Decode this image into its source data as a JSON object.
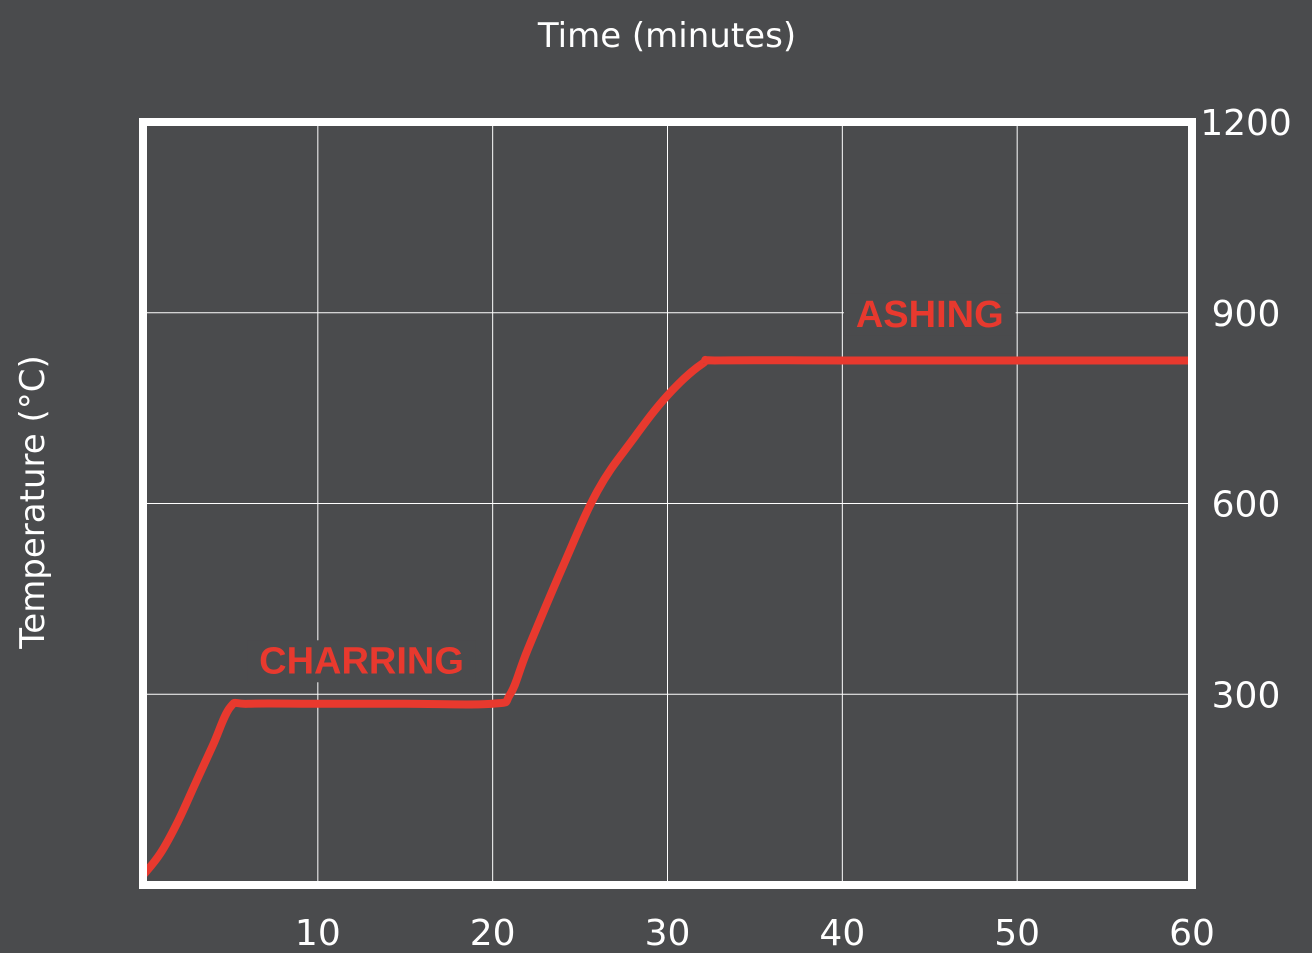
{
  "chart_data": {
    "type": "line",
    "xlabel": "Time (minutes)",
    "ylabel": "Temperature (°C)",
    "xlim": [
      0,
      60
    ],
    "ylim": [
      0,
      1200
    ],
    "x_ticks": [
      10,
      20,
      30,
      40,
      50,
      60
    ],
    "x_tick_labels": [
      "10",
      "20",
      "30",
      "40",
      "50",
      "60"
    ],
    "y_ticks": [
      300,
      600,
      900,
      1200
    ],
    "y_tick_labels": [
      "300",
      "600",
      "900",
      "1200"
    ],
    "grid": true,
    "series": [
      {
        "color": "#e8392e",
        "x": [
          0,
          1,
          2,
          3,
          4,
          5,
          6,
          10,
          15,
          20,
          21,
          22,
          24,
          26,
          28,
          30,
          32,
          33,
          40,
          50,
          60
        ],
        "y": [
          15,
          50,
          100,
          160,
          220,
          280,
          285,
          285,
          285,
          285,
          300,
          370,
          500,
          620,
          700,
          770,
          820,
          825,
          825,
          825,
          825
        ]
      }
    ],
    "annotations": [
      {
        "text": "CHARRING",
        "x": 12.5,
        "y": 355,
        "color": "#e8392e"
      },
      {
        "text": "ASHING",
        "x": 45,
        "y": 900,
        "color": "#e8392e"
      }
    ]
  },
  "colors": {
    "background": "#4a4b4d",
    "axes": "#ffffff",
    "grid": "#ffffff",
    "series": "#e8392e"
  }
}
